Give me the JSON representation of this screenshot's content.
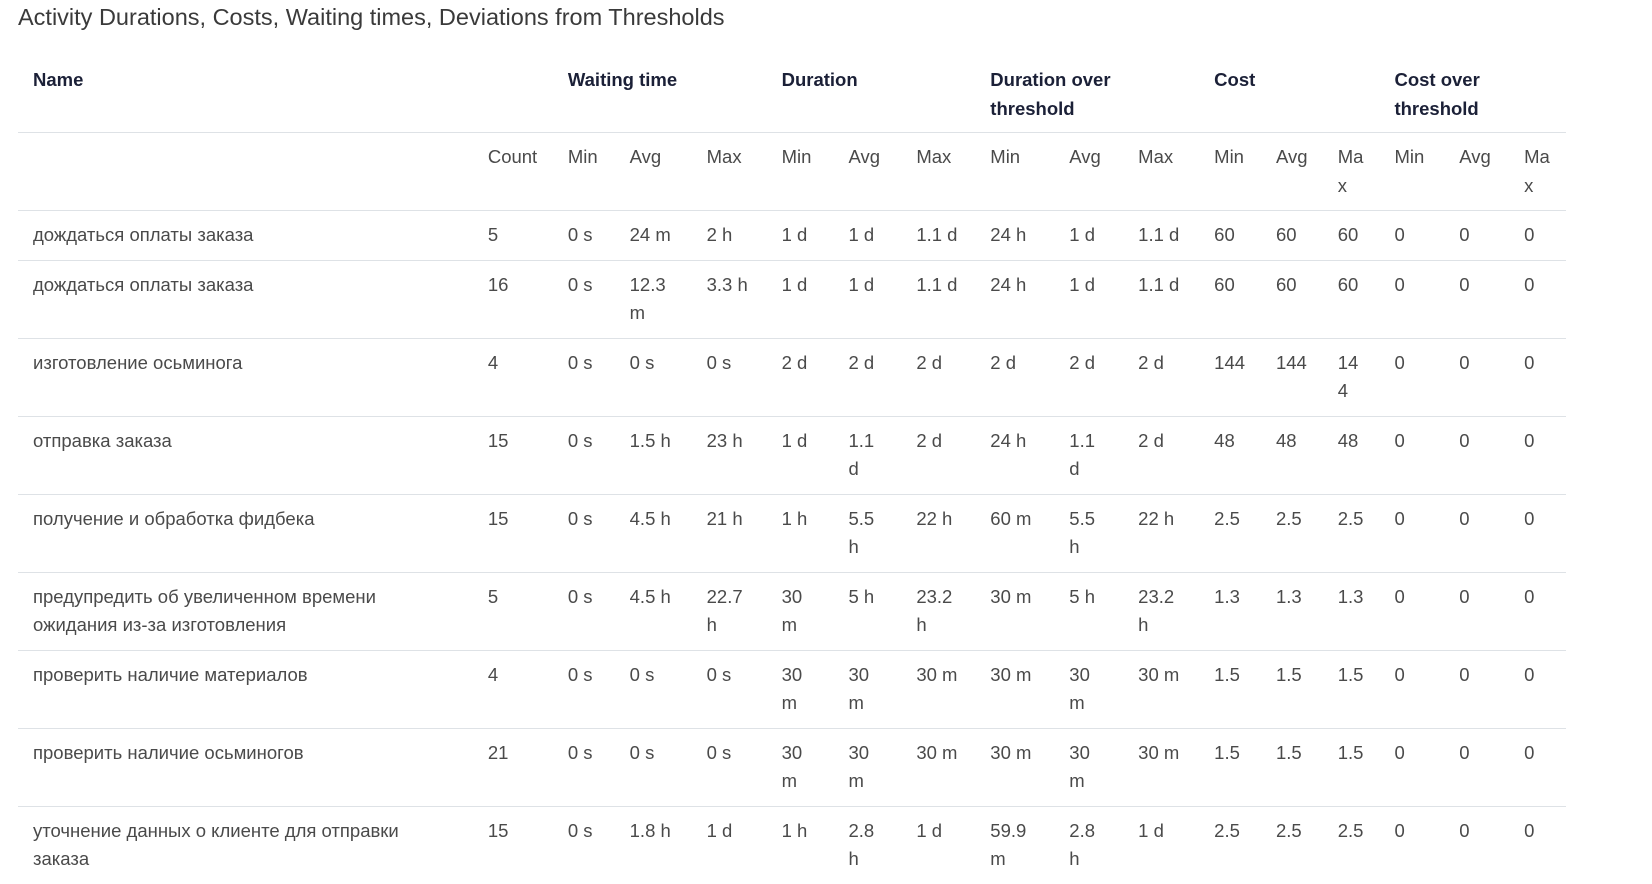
{
  "title": "Activity Durations, Costs, Waiting times, Deviations from Thresholds",
  "groups": {
    "name": "Name",
    "waiting_time": "Waiting time",
    "duration": "Duration",
    "duration_over": "Duration over threshold",
    "cost": "Cost",
    "cost_over": "Cost over threshold"
  },
  "subheaders": [
    "",
    "Count",
    "Min",
    "Avg",
    "Max",
    "Min",
    "Avg",
    "Max",
    "Min",
    "Avg",
    "Max",
    "Min",
    "Avg",
    "Max",
    "Min",
    "Avg",
    "Max"
  ],
  "rows": [
    [
      "дождаться оплаты заказа",
      "5",
      "0 s",
      "24 m",
      "2 h",
      "1 d",
      "1 d",
      "1.1 d",
      "24 h",
      "1 d",
      "1.1 d",
      "60",
      "60",
      "60",
      "0",
      "0",
      "0"
    ],
    [
      "дождаться оплаты заказа",
      "16",
      "0 s",
      "12.3 m",
      "3.3 h",
      "1 d",
      "1 d",
      "1.1 d",
      "24 h",
      "1 d",
      "1.1 d",
      "60",
      "60",
      "60",
      "0",
      "0",
      "0"
    ],
    [
      "изготовление осьминога",
      "4",
      "0 s",
      "0 s",
      "0 s",
      "2 d",
      "2 d",
      "2 d",
      "2 d",
      "2 d",
      "2 d",
      "144",
      "144",
      "144",
      "0",
      "0",
      "0"
    ],
    [
      "отправка заказа",
      "15",
      "0 s",
      "1.5 h",
      "23 h",
      "1 d",
      "1.1 d",
      "2 d",
      "24 h",
      "1.1 d",
      "2 d",
      "48",
      "48",
      "48",
      "0",
      "0",
      "0"
    ],
    [
      "получение и обработка фидбека",
      "15",
      "0 s",
      "4.5 h",
      "21 h",
      "1 h",
      "5.5 h",
      "22 h",
      "60 m",
      "5.5 h",
      "22 h",
      "2.5",
      "2.5",
      "2.5",
      "0",
      "0",
      "0"
    ],
    [
      "предупредить об увеличенном времени ожидания из-за изготовления",
      "5",
      "0 s",
      "4.5 h",
      "22.7 h",
      "30 m",
      "5 h",
      "23.2 h",
      "30 m",
      "5 h",
      "23.2 h",
      "1.3",
      "1.3",
      "1.3",
      "0",
      "0",
      "0"
    ],
    [
      "проверить наличие материалов",
      "4",
      "0 s",
      "0 s",
      "0 s",
      "30 m",
      "30 m",
      "30 m",
      "30 m",
      "30 m",
      "30 m",
      "1.5",
      "1.5",
      "1.5",
      "0",
      "0",
      "0"
    ],
    [
      "проверить наличие осьминогов",
      "21",
      "0 s",
      "0 s",
      "0 s",
      "30 m",
      "30 m",
      "30 m",
      "30 m",
      "30 m",
      "30 m",
      "1.5",
      "1.5",
      "1.5",
      "0",
      "0",
      "0"
    ],
    [
      "уточнение данных о клиенте для отправки заказа",
      "15",
      "0 s",
      "1.8 h",
      "1 d",
      "1 h",
      "2.8 h",
      "1 d",
      "59.9 m",
      "2.8 h",
      "1 d",
      "2.5",
      "2.5",
      "2.5",
      "0",
      "0",
      "0"
    ]
  ]
}
